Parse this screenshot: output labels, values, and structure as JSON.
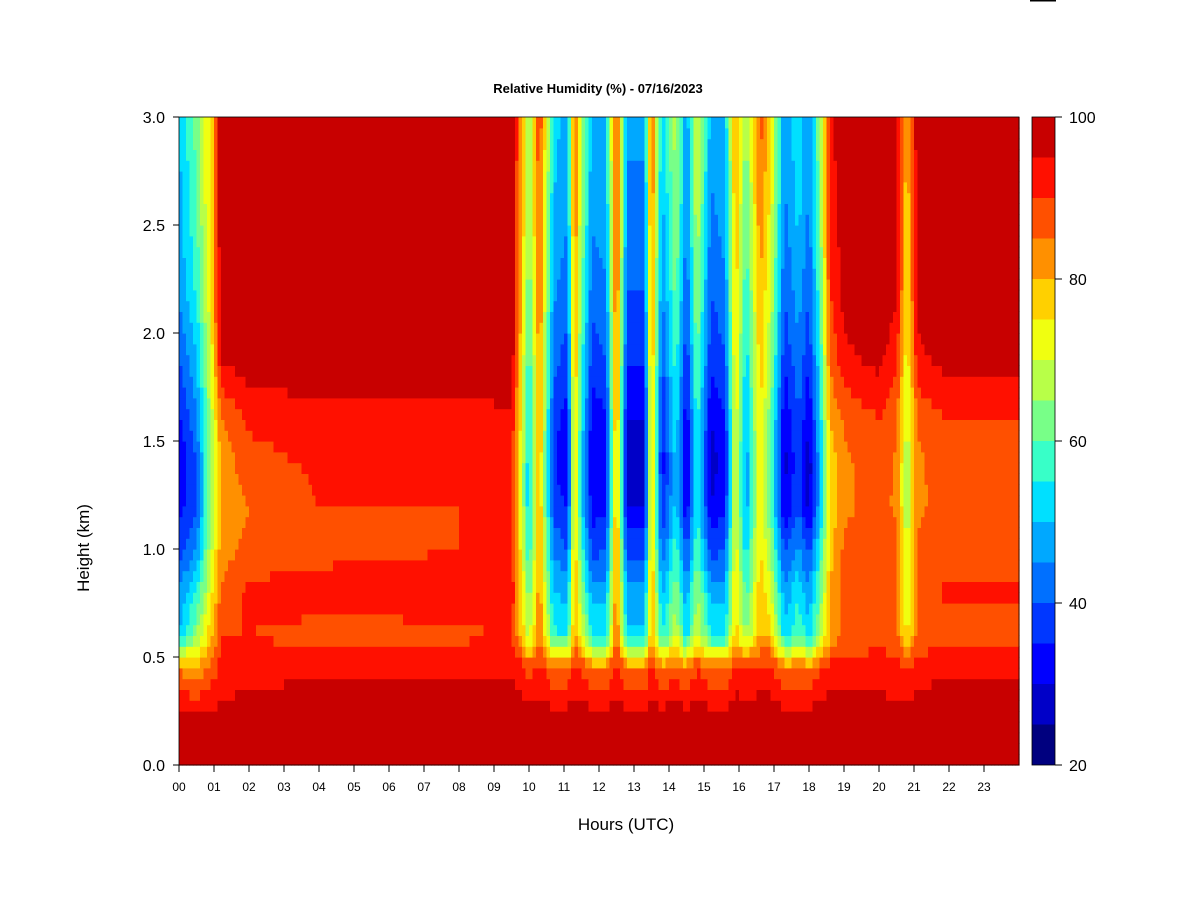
{
  "chart_data": {
    "type": "heatmap",
    "title": "Relative Humidity (%) - 07/16/2023",
    "xlabel": "Hours (UTC)",
    "ylabel": "Height (km)",
    "xlim": [
      0,
      24
    ],
    "ylim": [
      0.0,
      3.0
    ],
    "x_ticks": [
      "00",
      "01",
      "02",
      "03",
      "04",
      "05",
      "06",
      "07",
      "08",
      "09",
      "10",
      "11",
      "12",
      "13",
      "14",
      "15",
      "16",
      "17",
      "18",
      "19",
      "20",
      "21",
      "22",
      "23"
    ],
    "y_ticks": [
      "0.0",
      "0.5",
      "1.0",
      "1.5",
      "2.0",
      "2.5",
      "3.0"
    ],
    "colorbar": {
      "min": 20,
      "max": 100,
      "step": 5,
      "tick_labels": [
        "20",
        "40",
        "60",
        "80",
        "100"
      ],
      "colors": [
        "#00007f",
        "#0000c8",
        "#0000ff",
        "#0037ff",
        "#0070ff",
        "#00a8ff",
        "#00e0ff",
        "#38ffc8",
        "#78ff88",
        "#b8ff48",
        "#f0ff10",
        "#ffd000",
        "#ff9000",
        "#ff5000",
        "#ff1000",
        "#c80000",
        "#7f0000"
      ]
    },
    "profiles": [
      {
        "hour": 0.0,
        "rh": [
          98,
          95,
          85,
          50,
          45,
          38,
          32,
          30,
          34,
          40,
          46,
          48,
          50
        ]
      },
      {
        "hour": 0.5,
        "rh": [
          98,
          95,
          80,
          65,
          55,
          45,
          40,
          40,
          44,
          50,
          56,
          60,
          62
        ]
      },
      {
        "hour": 0.9,
        "rh": [
          98,
          95,
          86,
          78,
          72,
          68,
          64,
          64,
          66,
          70,
          74,
          76,
          76
        ]
      },
      {
        "hour": 1.2,
        "rh": [
          98,
          96,
          92,
          90,
          86,
          82,
          80,
          82,
          84,
          96,
          99,
          99,
          99
        ]
      },
      {
        "hour": 2.0,
        "rh": [
          98,
          97,
          93,
          90,
          91,
          87,
          85,
          88,
          91,
          99,
          99,
          99,
          99
        ]
      },
      {
        "hour": 4.0,
        "rh": [
          98,
          98,
          94,
          88,
          93,
          88,
          90,
          91,
          93,
          99,
          99,
          99,
          99
        ]
      },
      {
        "hour": 6.0,
        "rh": [
          98,
          98,
          94,
          88,
          93,
          89,
          90,
          91,
          93,
          99,
          99,
          99,
          99
        ]
      },
      {
        "hour": 8.0,
        "rh": [
          98,
          98,
          94,
          89,
          93,
          90,
          90,
          91,
          93,
          99,
          99,
          99,
          99
        ]
      },
      {
        "hour": 9.5,
        "rh": [
          98,
          98,
          94,
          90,
          94,
          91,
          91,
          92,
          94,
          99,
          99,
          99,
          99
        ]
      },
      {
        "hour": 9.8,
        "rh": [
          98,
          97,
          92,
          78,
          75,
          72,
          70,
          70,
          72,
          75,
          78,
          80,
          82
        ]
      },
      {
        "hour": 10.0,
        "rh": [
          98,
          97,
          88,
          68,
          62,
          55,
          50,
          50,
          52,
          56,
          60,
          64,
          66
        ]
      },
      {
        "hour": 10.3,
        "rh": [
          98,
          97,
          92,
          84,
          84,
          82,
          80,
          80,
          82,
          84,
          86,
          88,
          90
        ]
      },
      {
        "hour": 10.7,
        "rh": [
          98,
          96,
          85,
          56,
          50,
          44,
          38,
          36,
          38,
          42,
          46,
          50,
          52
        ]
      },
      {
        "hour": 11.1,
        "rh": [
          98,
          96,
          85,
          55,
          48,
          40,
          34,
          30,
          32,
          38,
          42,
          46,
          48
        ]
      },
      {
        "hour": 11.3,
        "rh": [
          98,
          97,
          92,
          82,
          82,
          80,
          78,
          78,
          80,
          82,
          84,
          86,
          88
        ]
      },
      {
        "hour": 11.5,
        "rh": [
          98,
          97,
          90,
          70,
          64,
          58,
          52,
          52,
          54,
          58,
          62,
          66,
          68
        ]
      },
      {
        "hour": 11.8,
        "rh": [
          98,
          96,
          84,
          55,
          48,
          38,
          32,
          30,
          32,
          38,
          42,
          46,
          48
        ]
      },
      {
        "hour": 12.2,
        "rh": [
          98,
          96,
          84,
          55,
          48,
          40,
          34,
          32,
          34,
          40,
          44,
          48,
          50
        ]
      },
      {
        "hour": 12.5,
        "rh": [
          98,
          97,
          93,
          86,
          86,
          84,
          82,
          82,
          84,
          86,
          88,
          90,
          92
        ]
      },
      {
        "hour": 12.8,
        "rh": [
          98,
          96,
          84,
          52,
          46,
          38,
          30,
          28,
          30,
          36,
          40,
          44,
          46
        ]
      },
      {
        "hour": 13.3,
        "rh": [
          98,
          96,
          84,
          52,
          46,
          38,
          30,
          28,
          30,
          36,
          40,
          44,
          46
        ]
      },
      {
        "hour": 13.5,
        "rh": [
          98,
          97,
          92,
          82,
          82,
          80,
          78,
          78,
          80,
          82,
          84,
          86,
          88
        ]
      },
      {
        "hour": 13.8,
        "rh": [
          98,
          96,
          84,
          55,
          48,
          40,
          34,
          32,
          34,
          40,
          44,
          48,
          50
        ]
      },
      {
        "hour": 14.2,
        "rh": [
          98,
          97,
          88,
          70,
          64,
          58,
          52,
          52,
          54,
          58,
          62,
          66,
          68
        ]
      },
      {
        "hour": 14.5,
        "rh": [
          98,
          96,
          84,
          52,
          46,
          38,
          30,
          28,
          30,
          36,
          40,
          44,
          46
        ]
      },
      {
        "hour": 14.8,
        "rh": [
          98,
          97,
          90,
          72,
          66,
          60,
          56,
          56,
          58,
          62,
          66,
          70,
          72
        ]
      },
      {
        "hour": 15.2,
        "rh": [
          98,
          96,
          85,
          55,
          48,
          38,
          30,
          28,
          30,
          36,
          40,
          44,
          48
        ]
      },
      {
        "hour": 15.6,
        "rh": [
          98,
          96,
          85,
          55,
          48,
          40,
          34,
          32,
          34,
          40,
          44,
          48,
          50
        ]
      },
      {
        "hour": 15.9,
        "rh": [
          98,
          97,
          92,
          78,
          76,
          74,
          72,
          72,
          74,
          76,
          78,
          80,
          82
        ]
      },
      {
        "hour": 16.2,
        "rh": [
          98,
          97,
          90,
          64,
          58,
          52,
          46,
          46,
          48,
          52,
          56,
          60,
          64
        ]
      },
      {
        "hour": 16.6,
        "rh": [
          98,
          97,
          92,
          80,
          78,
          76,
          74,
          74,
          76,
          78,
          80,
          84,
          88
        ]
      },
      {
        "hour": 16.9,
        "rh": [
          98,
          97,
          92,
          78,
          72,
          66,
          60,
          60,
          62,
          66,
          70,
          74,
          76
        ]
      },
      {
        "hour": 17.3,
        "rh": [
          98,
          96,
          84,
          52,
          46,
          38,
          30,
          28,
          30,
          36,
          40,
          44,
          46
        ]
      },
      {
        "hour": 17.7,
        "rh": [
          98,
          96,
          86,
          60,
          54,
          46,
          40,
          38,
          40,
          44,
          48,
          52,
          54
        ]
      },
      {
        "hour": 18.0,
        "rh": [
          98,
          96,
          84,
          52,
          46,
          38,
          28,
          26,
          30,
          36,
          40,
          44,
          46
        ]
      },
      {
        "hour": 18.3,
        "rh": [
          98,
          97,
          90,
          66,
          60,
          54,
          48,
          48,
          50,
          54,
          58,
          62,
          64
        ]
      },
      {
        "hour": 18.6,
        "rh": [
          98,
          97,
          92,
          80,
          80,
          78,
          76,
          76,
          80,
          86,
          90,
          92,
          94
        ]
      },
      {
        "hour": 19.0,
        "rh": [
          98,
          97,
          92,
          86,
          88,
          86,
          84,
          84,
          86,
          94,
          97,
          98,
          99
        ]
      },
      {
        "hour": 20.0,
        "rh": [
          98,
          97,
          93,
          88,
          90,
          88,
          87,
          88,
          90,
          97,
          98,
          99,
          99
        ]
      },
      {
        "hour": 20.5,
        "rh": [
          98,
          96,
          92,
          86,
          88,
          86,
          84,
          84,
          86,
          92,
          96,
          97,
          98
        ]
      },
      {
        "hour": 20.8,
        "rh": [
          98,
          96,
          90,
          74,
          70,
          68,
          66,
          66,
          68,
          72,
          74,
          76,
          78
        ]
      },
      {
        "hour": 21.1,
        "rh": [
          98,
          97,
          93,
          86,
          88,
          86,
          84,
          84,
          86,
          94,
          97,
          98,
          99
        ]
      },
      {
        "hour": 22.0,
        "rh": [
          98,
          98,
          94,
          88,
          91,
          88,
          87,
          88,
          90,
          98,
          99,
          99,
          99
        ]
      },
      {
        "hour": 23.0,
        "rh": [
          98,
          98,
          94,
          88,
          91,
          88,
          87,
          88,
          90,
          98,
          99,
          99,
          99
        ]
      },
      {
        "hour": 23.9,
        "rh": [
          98,
          98,
          94,
          88,
          91,
          88,
          87,
          88,
          90,
          98,
          99,
          99,
          99
        ]
      }
    ],
    "profile_heights_km": [
      0.0,
      0.25,
      0.45,
      0.6,
      0.8,
      1.0,
      1.2,
      1.4,
      1.6,
      1.9,
      2.2,
      2.6,
      3.0
    ]
  }
}
